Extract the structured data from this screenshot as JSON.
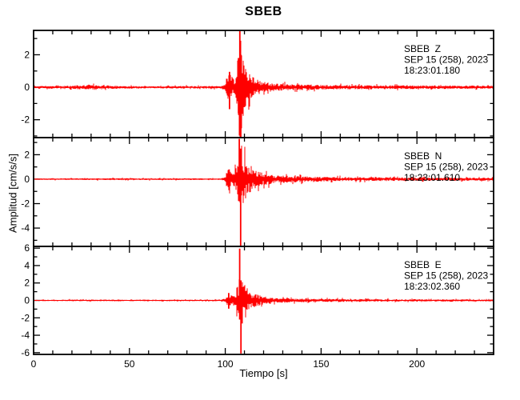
{
  "chart_data": {
    "type": "line",
    "title": "SBEB",
    "xlabel": "Tiempo [s]",
    "ylabel": "Amplitud [cm/s/s]",
    "xlim": [
      0,
      240
    ],
    "x_major_tick": 50,
    "x_minor_tick": 10,
    "x_tick_labels": [
      "0",
      "50",
      "100",
      "150",
      "200"
    ],
    "grid": false,
    "trace_color": "#ff0000",
    "axis_color": "#000000",
    "background_color": "#ffffff",
    "panels": [
      {
        "station": "SBEB",
        "component": "Z",
        "annotation": [
          "SBEB  Z",
          "SEP 15 (258), 2023",
          "18:23:01.180"
        ],
        "ylim": [
          -3.1,
          3.5
        ],
        "ytick_minor_step": 1,
        "ytick_labeled": [
          2,
          0,
          -2
        ],
        "seed": 11,
        "noise_envelope": [
          [
            0,
            0.07
          ],
          [
            15,
            0.08
          ],
          [
            25,
            0.12
          ],
          [
            32,
            0.15
          ],
          [
            38,
            0.1
          ],
          [
            55,
            0.07
          ],
          [
            80,
            0.07
          ],
          [
            98,
            0.07
          ],
          [
            100,
            0.25
          ],
          [
            101.5,
            1.0
          ],
          [
            103,
            0.55
          ],
          [
            105,
            0.5
          ],
          [
            106.3,
            1.4
          ],
          [
            107,
            2.6
          ],
          [
            107.8,
            3.2
          ],
          [
            108.6,
            2.4
          ],
          [
            109.5,
            1.5
          ],
          [
            111,
            1.0
          ],
          [
            113,
            0.7
          ],
          [
            116,
            0.45
          ],
          [
            120,
            0.3
          ],
          [
            126,
            0.22
          ],
          [
            135,
            0.17
          ],
          [
            150,
            0.13
          ],
          [
            175,
            0.11
          ],
          [
            210,
            0.1
          ],
          [
            240,
            0.09
          ]
        ],
        "spikes": [
          [
            102.2,
            0.95,
            -1.35
          ],
          [
            106.9,
            1.8,
            -1.6
          ],
          [
            107.6,
            3.45,
            -2.3
          ],
          [
            108.1,
            2.0,
            -3.05
          ]
        ]
      },
      {
        "station": "SBEB",
        "component": "N",
        "annotation": [
          "SBEB  N",
          "SEP 15 (258), 2023",
          "18:23:01.610"
        ],
        "ylim": [
          -5.5,
          3.4
        ],
        "ytick_minor_step": 1,
        "ytick_labeled": [
          2,
          0,
          -2,
          -4
        ],
        "seed": 23,
        "noise_envelope": [
          [
            0,
            0.05
          ],
          [
            20,
            0.06
          ],
          [
            40,
            0.07
          ],
          [
            70,
            0.06
          ],
          [
            98,
            0.06
          ],
          [
            100,
            0.3
          ],
          [
            101.5,
            0.85
          ],
          [
            103,
            0.5
          ],
          [
            105,
            0.55
          ],
          [
            106.5,
            1.5
          ],
          [
            107.5,
            2.8
          ],
          [
            108.5,
            2.3
          ],
          [
            110,
            1.7
          ],
          [
            112,
            1.2
          ],
          [
            115,
            0.8
          ],
          [
            119,
            0.5
          ],
          [
            125,
            0.33
          ],
          [
            135,
            0.24
          ],
          [
            150,
            0.18
          ],
          [
            175,
            0.14
          ],
          [
            210,
            0.12
          ],
          [
            240,
            0.11
          ]
        ],
        "spikes": [
          [
            102.0,
            0.8,
            -0.9
          ],
          [
            107.3,
            3.3,
            -1.8
          ],
          [
            108.0,
            2.5,
            -5.45
          ]
        ]
      },
      {
        "station": "SBEB",
        "component": "E",
        "annotation": [
          "SBEB  E",
          "SEP 15 (258), 2023",
          "18:23:02.360"
        ],
        "ylim": [
          -6.2,
          6.2
        ],
        "ytick_minor_step": 1,
        "ytick_labeled": [
          6,
          4,
          2,
          0,
          -2,
          -4,
          -6
        ],
        "seed": 37,
        "noise_envelope": [
          [
            0,
            0.07
          ],
          [
            25,
            0.09
          ],
          [
            50,
            0.08
          ],
          [
            80,
            0.08
          ],
          [
            98,
            0.08
          ],
          [
            100.5,
            0.3
          ],
          [
            102,
            0.85
          ],
          [
            103.5,
            0.5
          ],
          [
            105.5,
            0.6
          ],
          [
            107,
            1.9
          ],
          [
            108,
            3.1
          ],
          [
            109,
            2.4
          ],
          [
            110.5,
            1.7
          ],
          [
            112.5,
            1.1
          ],
          [
            115,
            0.75
          ],
          [
            119,
            0.45
          ],
          [
            125,
            0.3
          ],
          [
            135,
            0.22
          ],
          [
            150,
            0.17
          ],
          [
            175,
            0.14
          ],
          [
            210,
            0.12
          ],
          [
            240,
            0.11
          ]
        ],
        "spikes": [
          [
            101.8,
            0.85,
            -0.95
          ],
          [
            107.5,
            5.95,
            -2.2
          ],
          [
            108.2,
            2.3,
            -6.1
          ]
        ]
      }
    ]
  }
}
